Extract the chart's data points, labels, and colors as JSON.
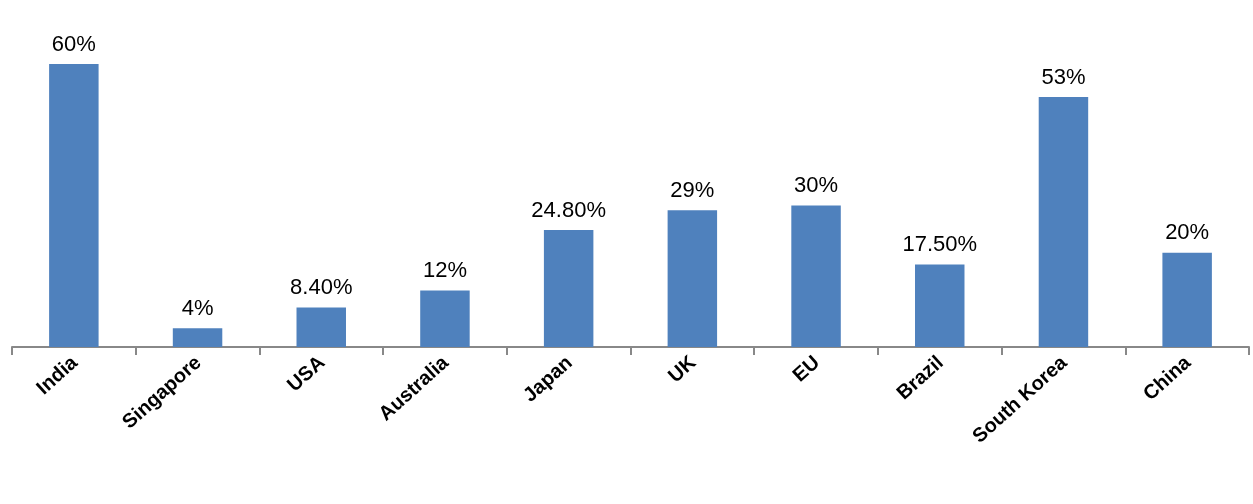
{
  "chart_data": {
    "type": "bar",
    "categories": [
      "India",
      "Singapore",
      "USA",
      "Australia",
      "Japan",
      "UK",
      "EU",
      "Brazil",
      "South Korea",
      "China"
    ],
    "values": [
      60,
      4,
      8.4,
      12,
      24.8,
      29,
      30,
      17.5,
      53,
      20
    ],
    "value_labels": [
      "60%",
      "4%",
      "8.40%",
      "12%",
      "24.80%",
      "29%",
      "30%",
      "17.50%",
      "53%",
      "20%"
    ],
    "color": "#4f81bd"
  }
}
